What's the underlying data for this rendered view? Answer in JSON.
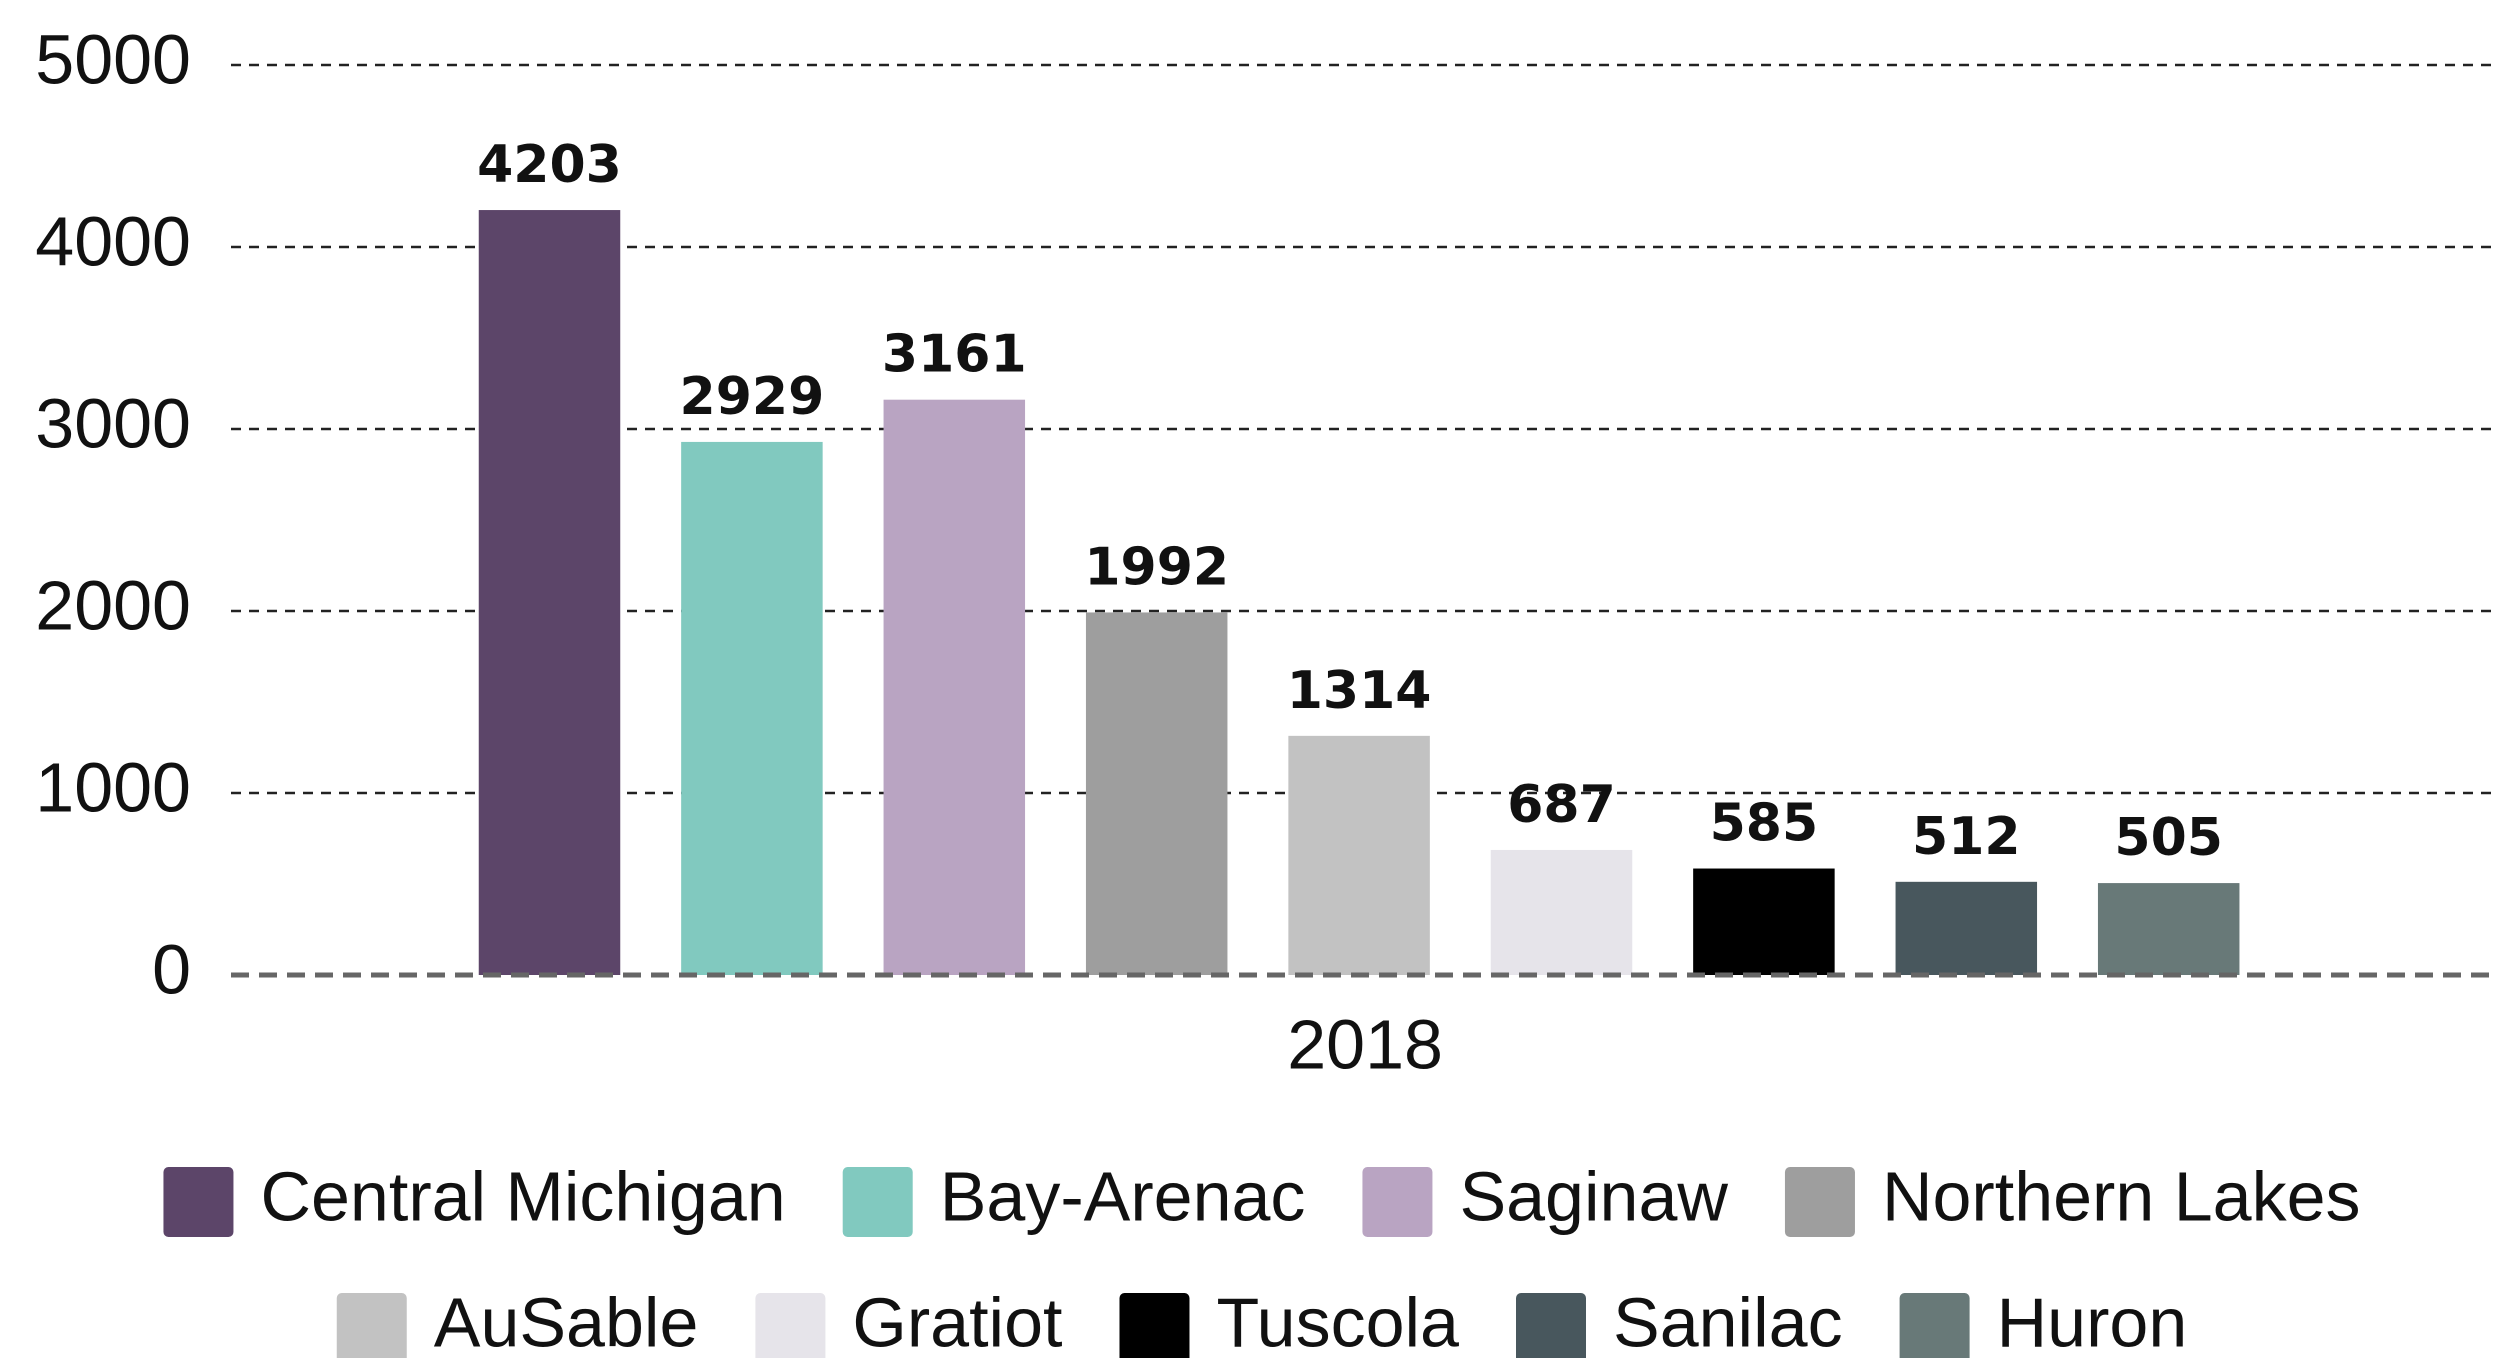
{
  "chart_data": {
    "type": "bar",
    "categories": [
      "2018"
    ],
    "series": [
      {
        "name": "Central Michigan",
        "color": "#5c4569",
        "values": [
          4203
        ]
      },
      {
        "name": "Bay-Arenac",
        "color": "#81c9bf",
        "values": [
          2929
        ]
      },
      {
        "name": "Saginaw",
        "color": "#b9a4c2",
        "values": [
          3161
        ]
      },
      {
        "name": "Northern Lakes",
        "color": "#9e9e9e",
        "values": [
          1992
        ]
      },
      {
        "name": "AuSable",
        "color": "#c2c2c2",
        "values": [
          1314
        ]
      },
      {
        "name": "Gratiot",
        "color": "#e6e4ea",
        "values": [
          687
        ]
      },
      {
        "name": "Tuscola",
        "color": "#000000",
        "values": [
          585
        ]
      },
      {
        "name": "Sanilac",
        "color": "#48575d",
        "values": [
          512
        ]
      },
      {
        "name": "Huron",
        "color": "#687978",
        "values": [
          505
        ]
      }
    ],
    "ylim": [
      0,
      5000
    ],
    "yticks": [
      0,
      1000,
      2000,
      3000,
      4000,
      5000
    ],
    "grid": true,
    "legend": "bottom"
  }
}
